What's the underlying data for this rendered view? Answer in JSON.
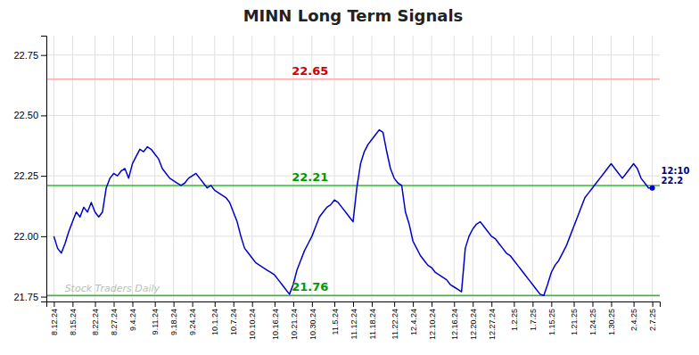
{
  "chart_data": {
    "type": "line",
    "title": "MINN Long Term Signals",
    "color": "#0000cc",
    "grid": true,
    "ylim": [
      21.73,
      22.83
    ],
    "yticks": [
      21.75,
      {
        "value": 22.0,
        "label": "22.00"
      },
      22.25,
      {
        "value": 22.5,
        "label": "22.50"
      },
      22.75
    ],
    "categories": [
      "8.12.24",
      null,
      null,
      null,
      null,
      "8.15.24",
      null,
      null,
      null,
      null,
      null,
      "8.22.24",
      null,
      null,
      null,
      null,
      "8.27.24",
      null,
      null,
      null,
      null,
      "9.4.24",
      null,
      null,
      null,
      null,
      null,
      "9.11.24",
      null,
      null,
      null,
      null,
      "9.18.24",
      null,
      null,
      null,
      null,
      "9.24.24",
      null,
      null,
      null,
      null,
      null,
      "10.1.24",
      null,
      null,
      null,
      null,
      "10.7.24",
      null,
      null,
      null,
      null,
      "10.10.24",
      null,
      null,
      null,
      null,
      null,
      "10.16.24",
      null,
      null,
      null,
      null,
      "10.21.24",
      null,
      null,
      null,
      null,
      "10.30.24",
      null,
      null,
      null,
      null,
      null,
      "11.5.24",
      null,
      null,
      null,
      null,
      "11.12.24",
      null,
      null,
      null,
      null,
      "11.18.24",
      null,
      null,
      null,
      null,
      null,
      "11.22.24",
      null,
      null,
      null,
      null,
      "12.4.24",
      null,
      null,
      null,
      null,
      "12.10.24",
      null,
      null,
      null,
      null,
      null,
      "12.16.24",
      null,
      null,
      null,
      null,
      "12.20.24",
      null,
      null,
      null,
      null,
      "12.27.24",
      null,
      null,
      null,
      null,
      null,
      "1.2.25",
      null,
      null,
      null,
      null,
      "1.7.25",
      null,
      null,
      null,
      null,
      "1.15.25",
      null,
      null,
      null,
      null,
      null,
      "1.21.25",
      null,
      null,
      null,
      null,
      "1.24.25",
      null,
      null,
      null,
      null,
      "1.30.25",
      null,
      null,
      null,
      null,
      null,
      "2.4.25",
      null,
      null,
      null,
      null,
      "2.7.25"
    ],
    "values": [
      22.0,
      21.95,
      21.93,
      21.97,
      22.02,
      22.06,
      22.1,
      22.08,
      22.12,
      22.1,
      22.14,
      22.1,
      22.08,
      22.1,
      22.2,
      22.24,
      22.26,
      22.25,
      22.27,
      22.28,
      22.24,
      22.3,
      22.33,
      22.36,
      22.35,
      22.37,
      22.36,
      22.34,
      22.32,
      22.28,
      22.26,
      22.24,
      22.23,
      22.22,
      22.21,
      22.22,
      22.24,
      22.25,
      22.26,
      22.24,
      22.22,
      22.2,
      22.21,
      22.19,
      22.18,
      22.17,
      22.16,
      22.14,
      22.1,
      22.06,
      22.0,
      21.95,
      21.93,
      21.91,
      21.89,
      21.88,
      21.87,
      21.86,
      21.85,
      21.84,
      21.82,
      21.8,
      21.78,
      21.76,
      21.8,
      21.86,
      21.9,
      21.94,
      21.97,
      22.0,
      22.04,
      22.08,
      22.1,
      22.12,
      22.13,
      22.15,
      22.14,
      22.12,
      22.1,
      22.08,
      22.06,
      22.2,
      22.3,
      22.35,
      22.38,
      22.4,
      22.42,
      22.44,
      22.43,
      22.35,
      22.28,
      22.24,
      22.22,
      22.21,
      22.1,
      22.05,
      21.98,
      21.95,
      21.92,
      21.9,
      21.88,
      21.87,
      21.85,
      21.84,
      21.83,
      21.82,
      21.8,
      21.79,
      21.78,
      21.77,
      21.95,
      22.0,
      22.03,
      22.05,
      22.06,
      22.04,
      22.02,
      22.0,
      21.99,
      21.97,
      21.95,
      21.93,
      21.92,
      21.9,
      21.88,
      21.86,
      21.84,
      21.82,
      21.8,
      21.78,
      21.76,
      21.755,
      21.8,
      21.85,
      21.88,
      21.9,
      21.93,
      21.96,
      22.0,
      22.04,
      22.08,
      22.12,
      22.16,
      22.18,
      22.2,
      22.22,
      22.24,
      22.26,
      22.28,
      22.3,
      22.28,
      22.26,
      22.24,
      22.26,
      22.28,
      22.3,
      22.28,
      22.24,
      22.22,
      22.2,
      22.2
    ],
    "hlines": [
      {
        "value": 22.65,
        "color": "#ffaaaa",
        "label": "22.65",
        "label_color": "#cc0000"
      },
      {
        "value": 22.21,
        "color": "#33bb33",
        "label": "22.21",
        "label_color": "#009900"
      },
      {
        "value": 21.755,
        "color": "#33bb33",
        "label": "21.76",
        "label_color": "#009900"
      }
    ],
    "annotations": [
      {
        "text": "Stock Traders Daily",
        "color": "#bbbbbb"
      },
      {
        "lines": [
          "12:10",
          "22.2"
        ],
        "color": "#000080"
      }
    ]
  }
}
